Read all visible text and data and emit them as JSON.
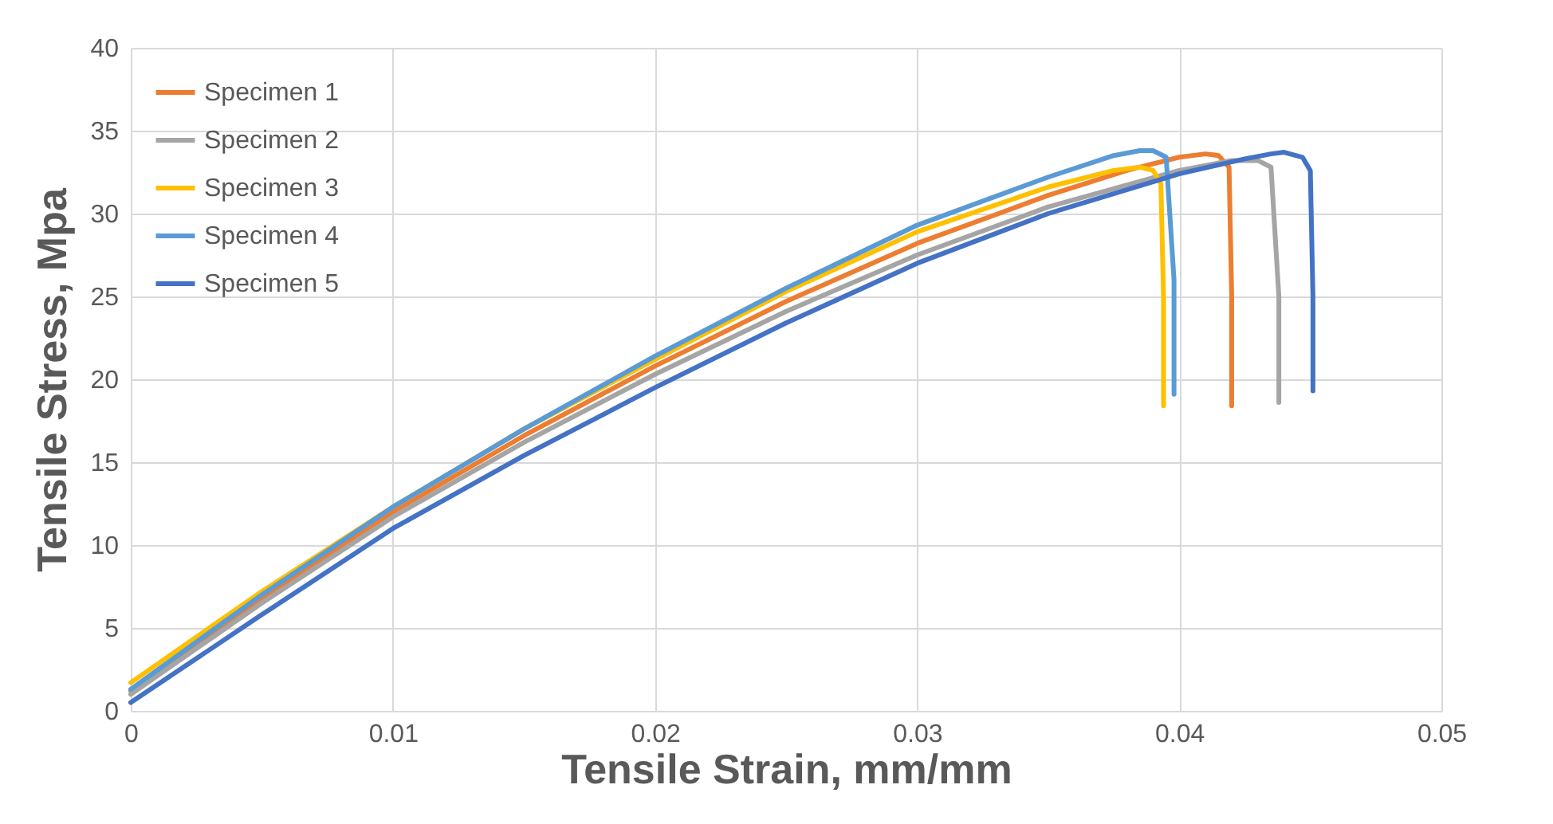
{
  "chart_data": {
    "type": "line",
    "xlabel": "Tensile Strain, mm/mm",
    "ylabel": "Tensile Stress, Mpa",
    "xlim": [
      0,
      0.05
    ],
    "xticks": [
      0,
      0.01,
      0.02,
      0.03,
      0.04,
      0.05
    ],
    "ylim": [
      0,
      40
    ],
    "yticks": [
      0,
      5,
      10,
      15,
      20,
      25,
      30,
      35,
      40
    ],
    "grid": true,
    "legend": "top left",
    "marker": "none",
    "line_style": "solid",
    "series": [
      {
        "name": "Specimen 1",
        "color": "#ed7d31",
        "x": [
          0,
          0.005,
          0.01,
          0.015,
          0.02,
          0.025,
          0.03,
          0.035,
          0.038,
          0.04,
          0.041,
          0.0415,
          0.0419,
          0.042,
          0.042
        ],
        "values": [
          1.2,
          6.8,
          12,
          16.6,
          20.8,
          24.7,
          28.2,
          31.1,
          32.6,
          33.4,
          33.6,
          33.5,
          32.8,
          25,
          18.4
        ]
      },
      {
        "name": "Specimen 2",
        "color": "#a5a5a5",
        "x": [
          0,
          0.005,
          0.01,
          0.015,
          0.02,
          0.025,
          0.03,
          0.035,
          0.04,
          0.042,
          0.043,
          0.0435,
          0.0438,
          0.0438
        ],
        "values": [
          1,
          6.5,
          11.7,
          16.2,
          20.3,
          24.1,
          27.5,
          30.4,
          32.6,
          33.2,
          33.2,
          32.8,
          25,
          18.6
        ]
      },
      {
        "name": "Specimen 3",
        "color": "#ffc000",
        "x": [
          0,
          0.005,
          0.01,
          0.015,
          0.02,
          0.025,
          0.03,
          0.035,
          0.0375,
          0.0385,
          0.039,
          0.0393,
          0.0394,
          0.0394
        ],
        "values": [
          1.7,
          7.2,
          12.3,
          17,
          21.2,
          25.3,
          28.9,
          31.6,
          32.6,
          32.8,
          32.6,
          31.8,
          25,
          18.4
        ]
      },
      {
        "name": "Specimen 4",
        "color": "#5b9bd5",
        "x": [
          0,
          0.005,
          0.01,
          0.015,
          0.02,
          0.025,
          0.03,
          0.035,
          0.0375,
          0.0385,
          0.039,
          0.0395,
          0.0398,
          0.0398
        ],
        "values": [
          1.3,
          7,
          12.3,
          17,
          21.4,
          25.5,
          29.3,
          32.2,
          33.5,
          33.8,
          33.8,
          33.4,
          26,
          19.1
        ]
      },
      {
        "name": "Specimen 5",
        "color": "#4472c4",
        "x": [
          0,
          0.005,
          0.01,
          0.015,
          0.02,
          0.025,
          0.03,
          0.035,
          0.04,
          0.0425,
          0.0435,
          0.044,
          0.0447,
          0.045,
          0.0451,
          0.0451
        ],
        "values": [
          0.5,
          5.8,
          11,
          15.4,
          19.5,
          23.4,
          27,
          30,
          32.4,
          33.3,
          33.6,
          33.7,
          33.4,
          32.6,
          25,
          19.3
        ]
      }
    ]
  }
}
